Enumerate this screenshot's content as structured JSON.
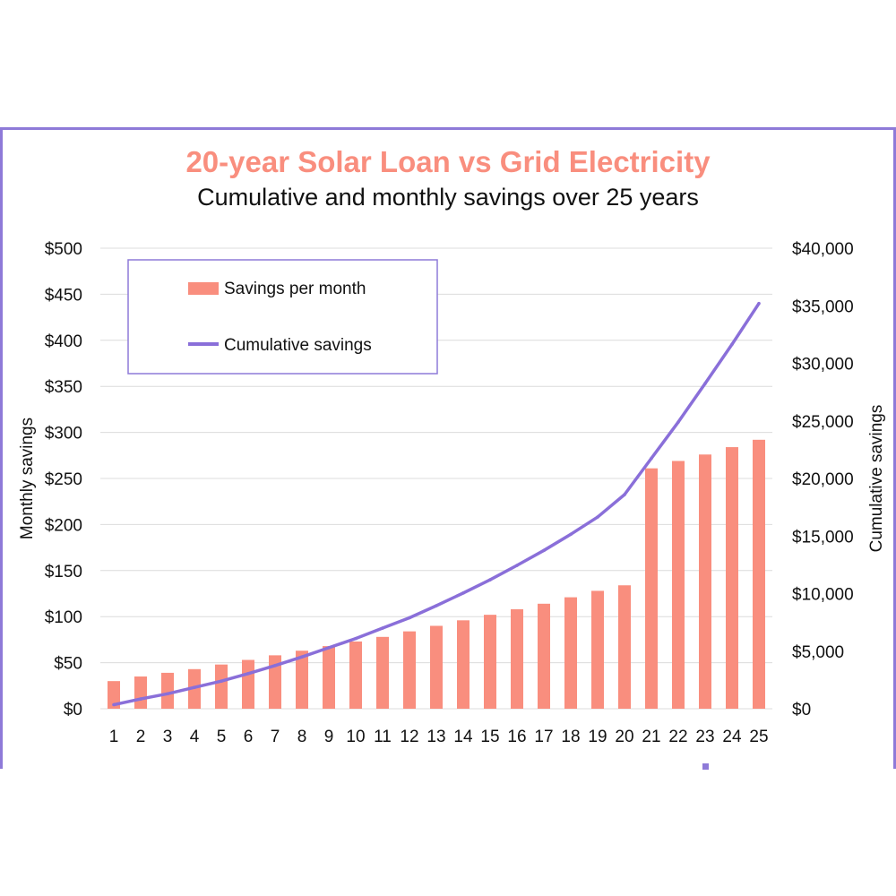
{
  "chart_data": {
    "type": "bar",
    "title": "20-year Solar Loan vs Grid Electricity",
    "subtitle": "Cumulative and monthly savings over 25 years",
    "xlabel": "",
    "ylabel": "Monthly savings",
    "y2label": "Cumulative savings",
    "categories": [
      "1",
      "2",
      "3",
      "4",
      "5",
      "6",
      "7",
      "8",
      "9",
      "10",
      "11",
      "12",
      "13",
      "14",
      "15",
      "16",
      "17",
      "18",
      "19",
      "20",
      "21",
      "22",
      "23",
      "24",
      "25"
    ],
    "ylim": [
      0,
      500
    ],
    "y2lim": [
      0,
      40000
    ],
    "yticks": [
      "$0",
      "$50",
      "$100",
      "$150",
      "$200",
      "$250",
      "$300",
      "$350",
      "$400",
      "$450",
      "$500"
    ],
    "y2ticks": [
      "$0",
      "$5,000",
      "$10,000",
      "$15,000",
      "$20,000",
      "$25,000",
      "$30,000",
      "$35,000",
      "$40,000"
    ],
    "grid": true,
    "legend_position": "top-left",
    "series": [
      {
        "name": "Savings per month",
        "type": "bar",
        "axis": "left",
        "color": "#f98e7e",
        "values": [
          30,
          35,
          39,
          43,
          48,
          53,
          58,
          63,
          68,
          73,
          78,
          84,
          90,
          96,
          102,
          108,
          114,
          121,
          128,
          134,
          261,
          269,
          276,
          284,
          292
        ]
      },
      {
        "name": "Cumulative savings",
        "type": "line",
        "axis": "right",
        "color": "#8a6fd9",
        "values": [
          350,
          850,
          1300,
          1850,
          2400,
          3050,
          3750,
          4500,
          5300,
          6100,
          7000,
          7900,
          8950,
          10050,
          11200,
          12450,
          13750,
          15150,
          16650,
          18600,
          21750,
          24900,
          28250,
          31650,
          35200
        ]
      }
    ]
  },
  "colors": {
    "title": "#f98e7e",
    "frame": "#8e7ad8",
    "grid": "#dcdcdc"
  }
}
